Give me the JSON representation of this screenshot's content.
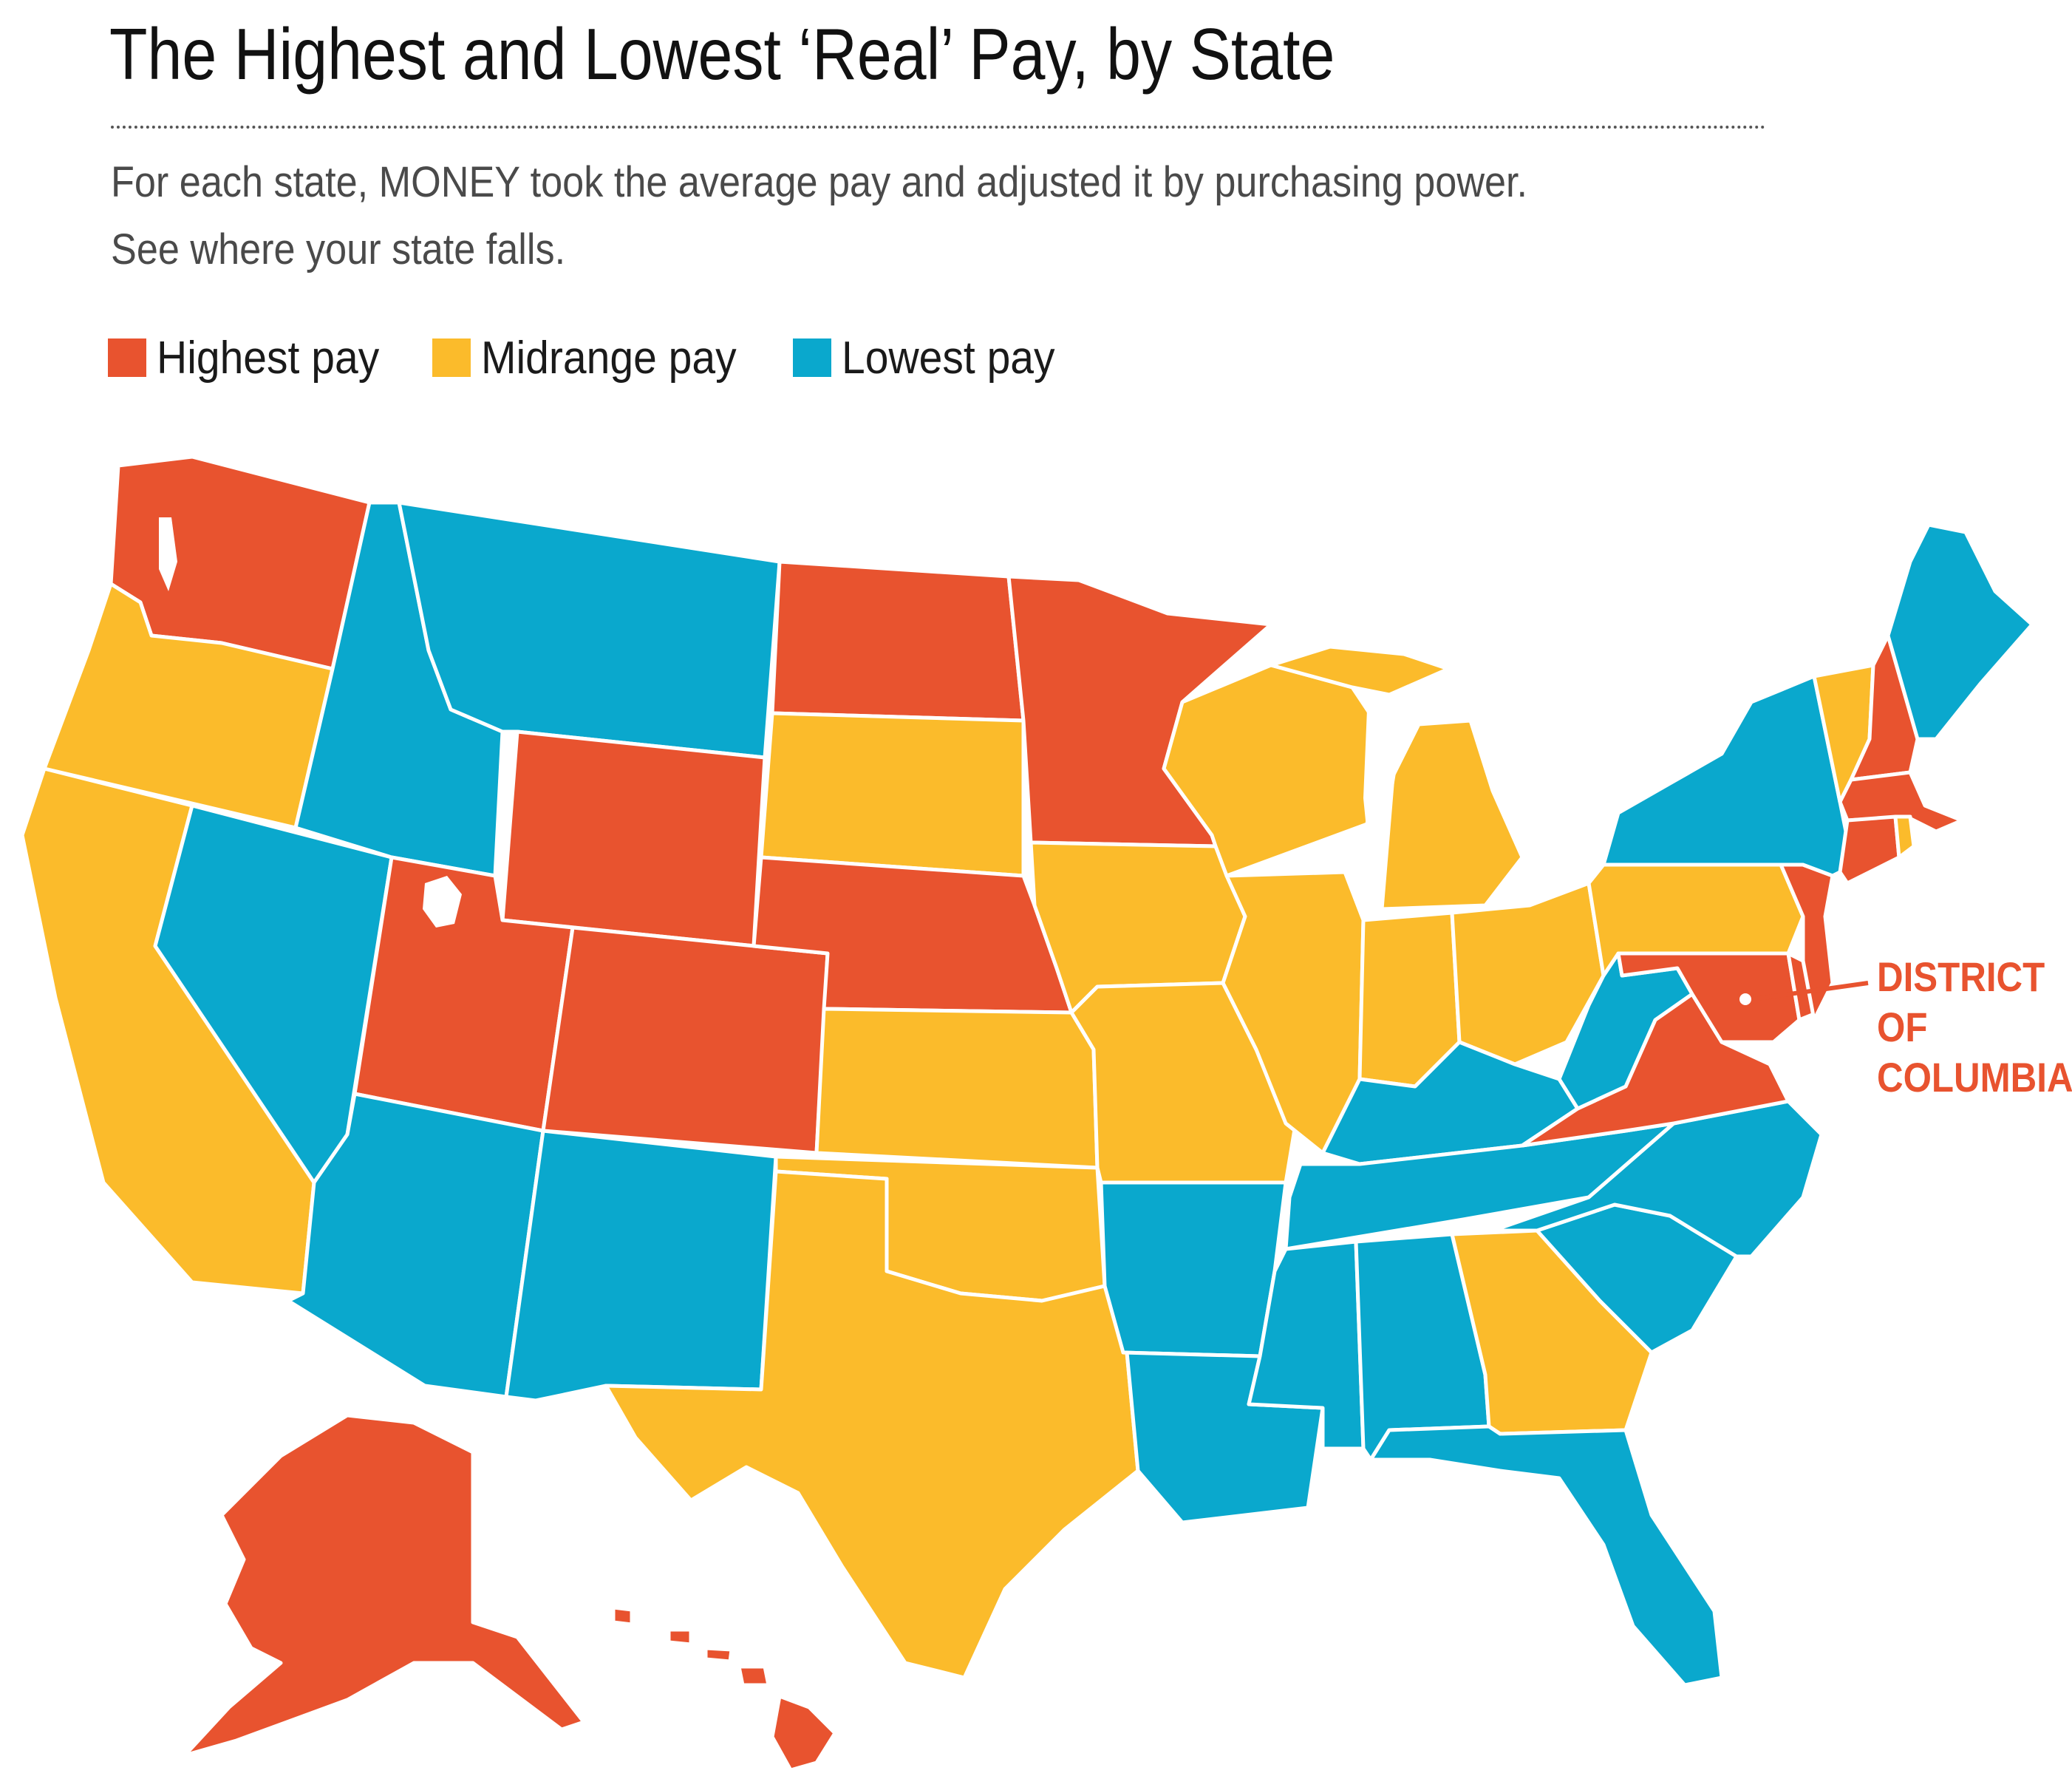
{
  "title": "The Highest and Lowest ‘Real’ Pay, by State",
  "subtitle_line1": "For each state, MONEY took the average pay and adjusted it by purchasing power.",
  "subtitle_line2": "See where your state falls.",
  "legend": [
    {
      "label": "Highest pay",
      "category": "high",
      "color": "#e8532f"
    },
    {
      "label": "Midrange pay",
      "category": "mid",
      "color": "#fbbb2b"
    },
    {
      "label": "Lowest pay",
      "category": "low",
      "color": "#0aa8cd"
    }
  ],
  "dc_label": [
    "DISTRICT",
    "OF",
    "COLUMBIA"
  ],
  "dc_category": "high",
  "states": {
    "WA": "high",
    "OR": "mid",
    "CA": "mid",
    "NV": "low",
    "ID": "low",
    "MT": "low",
    "WY": "high",
    "UT": "high",
    "AZ": "low",
    "CO": "high",
    "NM": "low",
    "ND": "high",
    "SD": "mid",
    "NE": "high",
    "KS": "mid",
    "OK": "mid",
    "TX": "mid",
    "MN": "high",
    "IA": "mid",
    "MO": "mid",
    "AR": "low",
    "LA": "low",
    "WI": "mid",
    "IL": "mid",
    "MI": "mid",
    "IN": "mid",
    "OH": "mid",
    "KY": "low",
    "TN": "low",
    "MS": "low",
    "AL": "low",
    "GA": "mid",
    "FL": "low",
    "SC": "low",
    "NC": "low",
    "VA": "high",
    "WV": "low",
    "MD": "high",
    "DE": "high",
    "PA": "mid",
    "NJ": "high",
    "NY": "low",
    "CT": "high",
    "RI": "mid",
    "MA": "high",
    "VT": "mid",
    "NH": "high",
    "ME": "low",
    "AK": "high",
    "HI": "high"
  }
}
